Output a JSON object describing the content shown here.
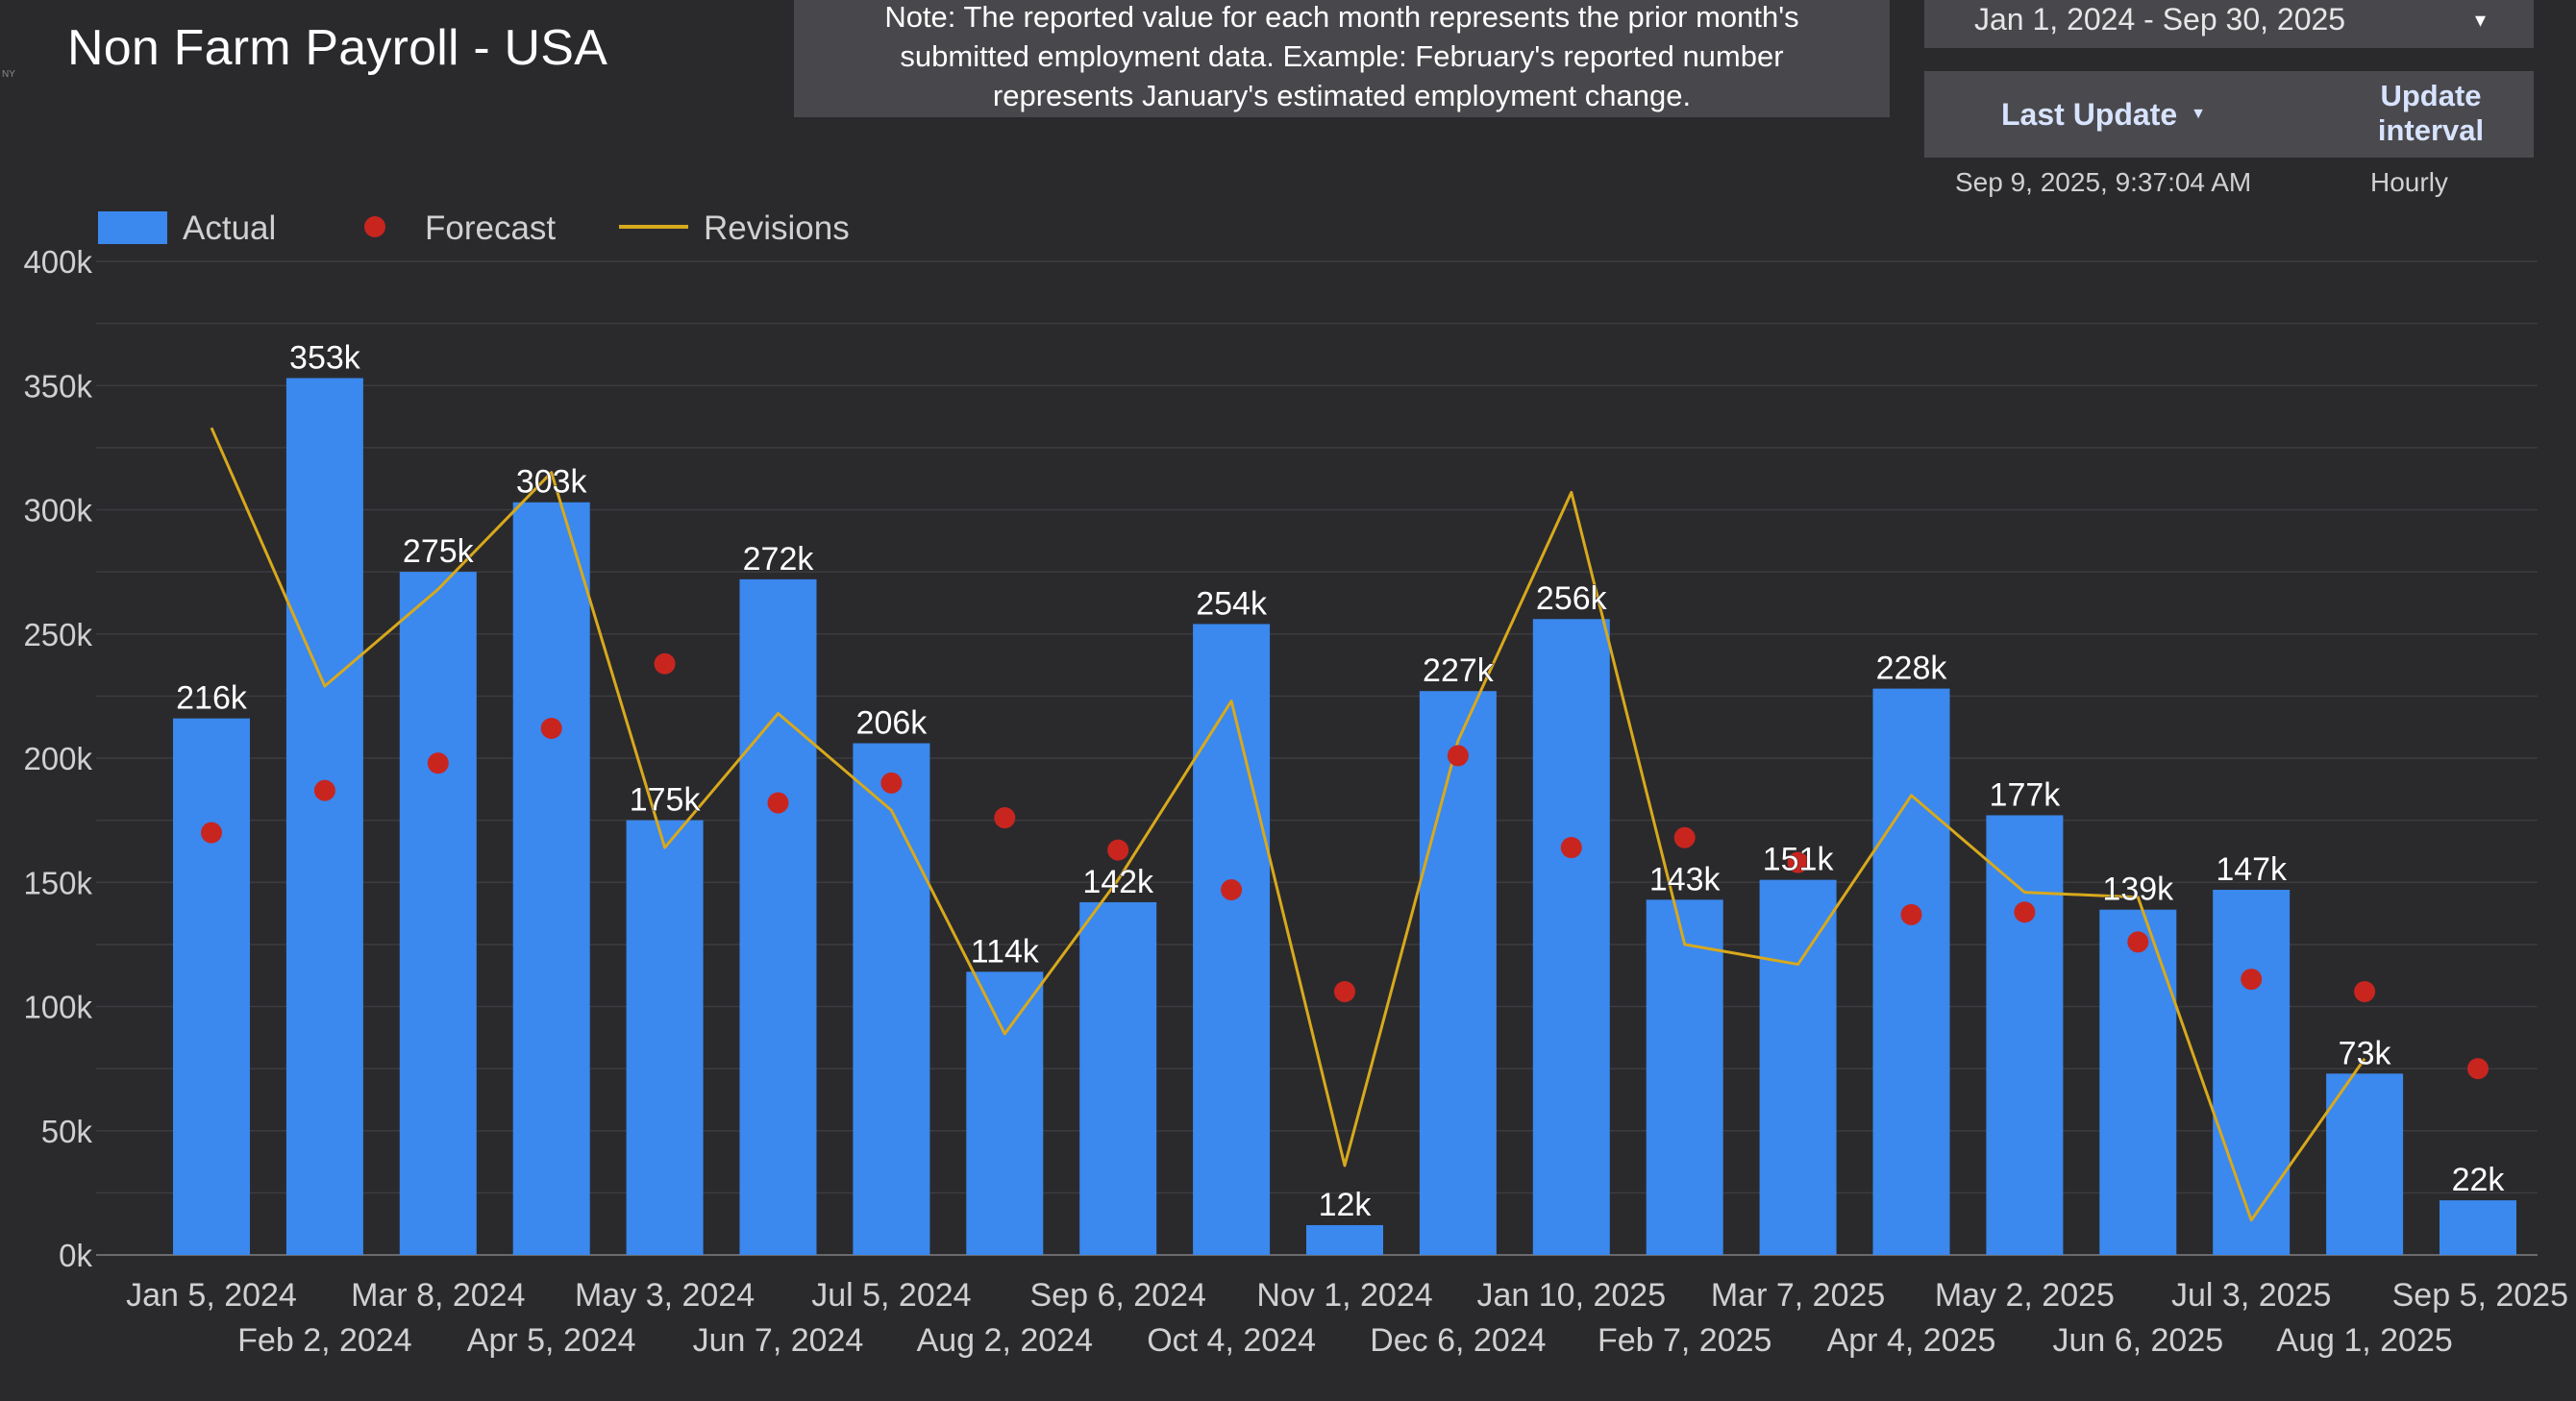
{
  "header": {
    "title": "Non Farm Payroll - USA",
    "logo_text": "NY"
  },
  "note": {
    "lines": [
      "Note: The reported value for each month represents the prior month's",
      "submitted employment data. Example: February's reported number",
      "represents January's estimated employment change."
    ]
  },
  "date_range": {
    "value": "Jan 1, 2024 - Sep 30, 2025",
    "icon": "dropdown-arrow-icon"
  },
  "update_info": {
    "last_update_label": "Last Update",
    "sort_icon": "sort-down-icon",
    "interval_label_line1": "Update",
    "interval_label_line2": "interval",
    "last_update_value": "Sep 9, 2025, 9:37:04 AM",
    "interval_value": "Hourly"
  },
  "colors": {
    "background": "#2a2a2d",
    "bar": "#3b88ee",
    "forecast": "#c8251f",
    "revisions": "#d8a91c",
    "grid": "#3c3c40",
    "axis_text": "#d0d0d0"
  },
  "chart_data": {
    "type": "bar",
    "title": "Non Farm Payroll - USA",
    "categories": [
      "Jan 5, 2024",
      "Feb 2, 2024",
      "Mar 8, 2024",
      "Apr 5, 2024",
      "May 3, 2024",
      "Jun 7, 2024",
      "Jul 5, 2024",
      "Aug 2, 2024",
      "Sep 6, 2024",
      "Oct 4, 2024",
      "Nov 1, 2024",
      "Dec 6, 2024",
      "Jan 10, 2025",
      "Feb 7, 2025",
      "Mar 7, 2025",
      "Apr 4, 2025",
      "May 2, 2025",
      "Jun 6, 2025",
      "Jul 3, 2025",
      "Aug 1, 2025",
      "Sep 5, 2025"
    ],
    "series": [
      {
        "name": "Actual",
        "kind": "bar",
        "values": [
          216,
          353,
          275,
          303,
          175,
          272,
          206,
          114,
          142,
          254,
          12,
          227,
          256,
          143,
          151,
          228,
          177,
          139,
          147,
          73,
          22
        ],
        "labels": [
          "216k",
          "353k",
          "275k",
          "303k",
          "175k",
          "272k",
          "206k",
          "114k",
          "142k",
          "254k",
          "12k",
          "227k",
          "256k",
          "143k",
          "151k",
          "228k",
          "177k",
          "139k",
          "147k",
          "73k",
          "22k"
        ]
      },
      {
        "name": "Forecast",
        "kind": "point",
        "values": [
          170,
          187,
          198,
          212,
          238,
          182,
          190,
          176,
          163,
          147,
          106,
          201,
          164,
          168,
          158,
          137,
          138,
          126,
          111,
          106,
          75
        ]
      },
      {
        "name": "Revisions",
        "kind": "line",
        "values": [
          333,
          229,
          268,
          315,
          164,
          218,
          179,
          89,
          151,
          223,
          36,
          207,
          307,
          125,
          117,
          185,
          146,
          144,
          14,
          79,
          null
        ]
      }
    ],
    "units": "thousands",
    "y_ticks": [
      "0k",
      "50k",
      "100k",
      "150k",
      "200k",
      "250k",
      "300k",
      "350k",
      "400k"
    ],
    "ylim": [
      0,
      400
    ],
    "legend": [
      "Actual",
      "Forecast",
      "Revisions"
    ],
    "legend_position": "top-left",
    "grid": true
  }
}
